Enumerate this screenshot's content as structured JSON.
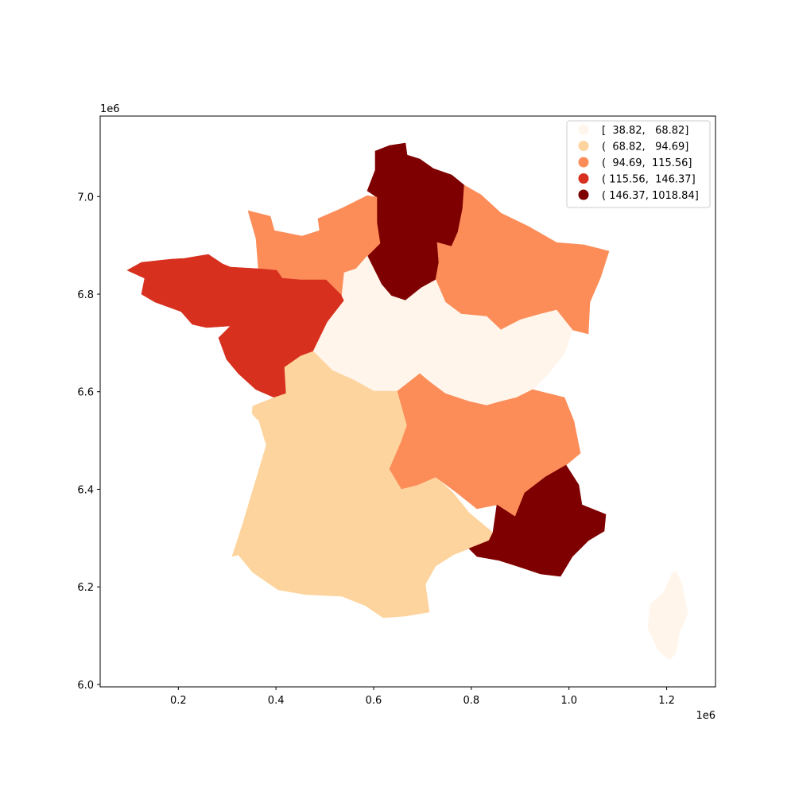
{
  "chart_data": {
    "type": "choropleth",
    "x_offset_label": "1e6",
    "y_offset_label": "1e6",
    "x_ticks": [
      "0.2",
      "0.4",
      "0.6",
      "0.8",
      "1.0",
      "1.2"
    ],
    "y_ticks": [
      "6.0",
      "6.2",
      "6.4",
      "6.6",
      "6.8",
      "7.0"
    ],
    "xlim": [
      0.04,
      1.3
    ],
    "ylim": [
      5.995,
      7.165
    ],
    "legend_position": "top-right",
    "legend": [
      {
        "label": "[  38.82,   68.82]",
        "color": "#fff5eb"
      },
      {
        "label": "(  68.82,   94.69]",
        "color": "#fdd49e"
      },
      {
        "label": "(  94.69,  115.56]",
        "color": "#fc8d59"
      },
      {
        "label": "( 115.56,  146.37]",
        "color": "#d7301f"
      },
      {
        "label": "( 146.37, 1018.84]",
        "color": "#7f0000"
      }
    ],
    "regions": [
      {
        "id": "hauts-de-france",
        "class": 4
      },
      {
        "id": "ile-de-france",
        "class": 4
      },
      {
        "id": "provence-alpes-cote-dazur",
        "class": 4
      },
      {
        "id": "normandie",
        "class": 2
      },
      {
        "id": "grand-est",
        "class": 2
      },
      {
        "id": "auvergne-rhone-alpes",
        "class": 2
      },
      {
        "id": "bretagne",
        "class": 3
      },
      {
        "id": "pays-de-la-loire",
        "class": 3
      },
      {
        "id": "centre-val-de-loire",
        "class": 0
      },
      {
        "id": "bourgogne-franche-comte",
        "class": 0
      },
      {
        "id": "corse",
        "class": 0
      },
      {
        "id": "nouvelle-aquitaine",
        "class": 1
      },
      {
        "id": "occitanie",
        "class": 1
      }
    ]
  }
}
